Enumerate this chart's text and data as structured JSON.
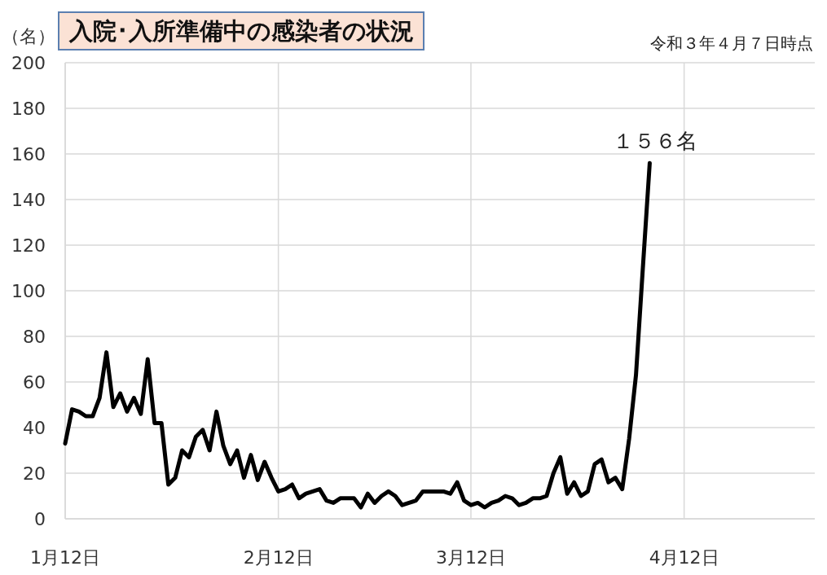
{
  "chart_data": {
    "type": "line",
    "title": "入院･入所準備中の感染者の状況",
    "subtitle": "令和３年４月７日時点",
    "ylabel": "（名）",
    "x": [
      "--01-12",
      "--01-13",
      "--01-14",
      "--01-15",
      "--01-16",
      "--01-17",
      "--01-18",
      "--01-19",
      "--01-20",
      "--01-21",
      "--01-22",
      "--01-23",
      "--01-24",
      "--01-25",
      "--01-26",
      "--01-27",
      "--01-28",
      "--01-29",
      "--01-30",
      "--01-31",
      "--02-01",
      "--02-02",
      "--02-03",
      "--02-04",
      "--02-05",
      "--02-06",
      "--02-07",
      "--02-08",
      "--02-09",
      "--02-10",
      "--02-11",
      "--02-12",
      "--02-13",
      "--02-14",
      "--02-15",
      "--02-16",
      "--02-17",
      "--02-18",
      "--02-19",
      "--02-20",
      "--02-21",
      "--02-22",
      "--02-23",
      "--02-24",
      "--02-25",
      "--02-26",
      "--02-27",
      "--02-28",
      "--03-01",
      "--03-02",
      "--03-03",
      "--03-04",
      "--03-05",
      "--03-06",
      "--03-07",
      "--03-08",
      "--03-09",
      "--03-10",
      "--03-11",
      "--03-12",
      "--03-13",
      "--03-14",
      "--03-15",
      "--03-16",
      "--03-17",
      "--03-18",
      "--03-19",
      "--03-20",
      "--03-21",
      "--03-22",
      "--03-23",
      "--03-24",
      "--03-25",
      "--03-26",
      "--03-27",
      "--03-28",
      "--03-29",
      "--03-30",
      "--03-31",
      "--04-01",
      "--04-02",
      "--04-03",
      "--04-04",
      "--04-05",
      "--04-06",
      "--04-07"
    ],
    "values": [
      33,
      48,
      47,
      45,
      45,
      53,
      73,
      49,
      55,
      47,
      53,
      46,
      70,
      42,
      42,
      15,
      18,
      30,
      27,
      36,
      39,
      30,
      47,
      32,
      24,
      30,
      18,
      28,
      17,
      25,
      18,
      12,
      13,
      15,
      9,
      11,
      12,
      13,
      8,
      7,
      9,
      9,
      9,
      5,
      11,
      7,
      10,
      12,
      10,
      6,
      7,
      8,
      12,
      12,
      12,
      12,
      11,
      16,
      8,
      6,
      7,
      5,
      7,
      8,
      10,
      9,
      6,
      7,
      9,
      9,
      10,
      20,
      27,
      11,
      16,
      10,
      12,
      24,
      26,
      16,
      18,
      13,
      35,
      63,
      110,
      156
    ],
    "color": "#000000",
    "marker": "none",
    "line_style": "solid",
    "xlim": [
      "--01-12",
      "--05-01"
    ],
    "xticks": [
      {
        "value": "--01-12",
        "label": "1月12日"
      },
      {
        "value": "--02-12",
        "label": "2月12日"
      },
      {
        "value": "--03-12",
        "label": "3月12日"
      },
      {
        "value": "--04-12",
        "label": "4月12日"
      }
    ],
    "ylim": [
      0,
      200
    ],
    "yticks": [
      0,
      20,
      40,
      60,
      80,
      100,
      120,
      140,
      160,
      180,
      200
    ],
    "grid": true,
    "annotations": [
      {
        "text": "１５６名",
        "x": "--04-07",
        "y": 156
      }
    ]
  }
}
